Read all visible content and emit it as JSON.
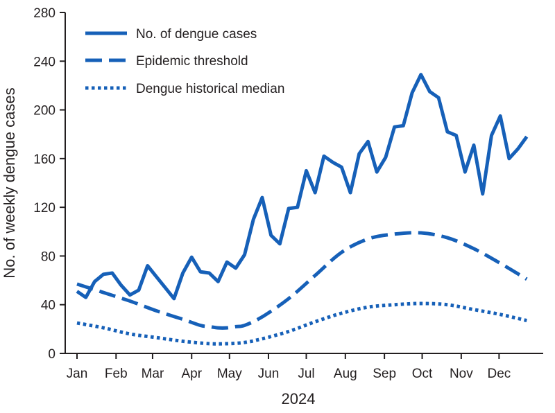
{
  "chart_data": {
    "type": "line",
    "title": "",
    "xlabel": "2024",
    "ylabel": "No. of weekly dengue cases",
    "ylim": [
      0,
      280
    ],
    "yticks": [
      0,
      40,
      80,
      120,
      160,
      200,
      240,
      280
    ],
    "x_range_weeks": [
      1,
      53
    ],
    "x_month_ticks": [
      {
        "label": "Jan",
        "week": 1
      },
      {
        "label": "Feb",
        "week": 5.43
      },
      {
        "label": "Mar",
        "week": 9.57
      },
      {
        "label": "Apr",
        "week": 14
      },
      {
        "label": "May",
        "week": 18.29
      },
      {
        "label": "Jun",
        "week": 22.71
      },
      {
        "label": "Jul",
        "week": 27
      },
      {
        "label": "Aug",
        "week": 31.43
      },
      {
        "label": "Sep",
        "week": 35.86
      },
      {
        "label": "Oct",
        "week": 40.14
      },
      {
        "label": "Nov",
        "week": 44.57
      },
      {
        "label": "Dec",
        "week": 48.86
      }
    ],
    "grid": false,
    "legend_position": "top-left",
    "series": [
      {
        "name": "No. of dengue cases",
        "style": "solid",
        "color": "#1660b8",
        "x": [
          1,
          2,
          3,
          4,
          5,
          6,
          7,
          8,
          9,
          10,
          11,
          12,
          13,
          14,
          15,
          16,
          17,
          18,
          19,
          20,
          21,
          22,
          23,
          24,
          25,
          26,
          27,
          28,
          29,
          30,
          31,
          32,
          33,
          34,
          35,
          36,
          37,
          38,
          39,
          40,
          41,
          42,
          43,
          44,
          45,
          46,
          47,
          48,
          49,
          50,
          51,
          52
        ],
        "values": [
          51,
          46,
          59,
          65,
          66,
          56,
          48,
          52,
          72,
          63,
          54,
          45,
          66,
          79,
          67,
          66,
          59,
          75,
          70,
          81,
          110,
          128,
          97,
          90,
          119,
          120,
          150,
          132,
          162,
          157,
          153,
          132,
          164,
          174,
          149,
          161,
          186,
          187,
          214,
          229,
          215,
          210,
          182,
          179,
          149,
          171,
          131,
          179,
          195,
          160,
          168,
          178
        ]
      },
      {
        "name": "Epidemic threshold",
        "style": "dashed",
        "color": "#1660b8",
        "x": [
          1,
          4,
          7,
          10,
          13,
          15,
          16,
          17,
          18,
          19,
          20,
          22,
          25,
          28,
          31,
          34,
          37,
          40,
          43,
          46,
          49,
          52
        ],
        "values": [
          57,
          50,
          43,
          35,
          28,
          23,
          22,
          21,
          21,
          22,
          23,
          30,
          45,
          64,
          83,
          94,
          98,
          99,
          95,
          86,
          74,
          61
        ]
      },
      {
        "name": "Dengue historical median",
        "style": "dotted",
        "color": "#1660b8",
        "x": [
          1,
          4,
          7,
          10,
          13,
          16,
          18,
          20,
          22,
          25,
          28,
          31,
          34,
          37,
          40,
          43,
          46,
          49,
          52
        ],
        "values": [
          25,
          21,
          16,
          13,
          10,
          8,
          8,
          9,
          12,
          18,
          26,
          33,
          38,
          40,
          41,
          40,
          36,
          32,
          27
        ]
      }
    ]
  }
}
